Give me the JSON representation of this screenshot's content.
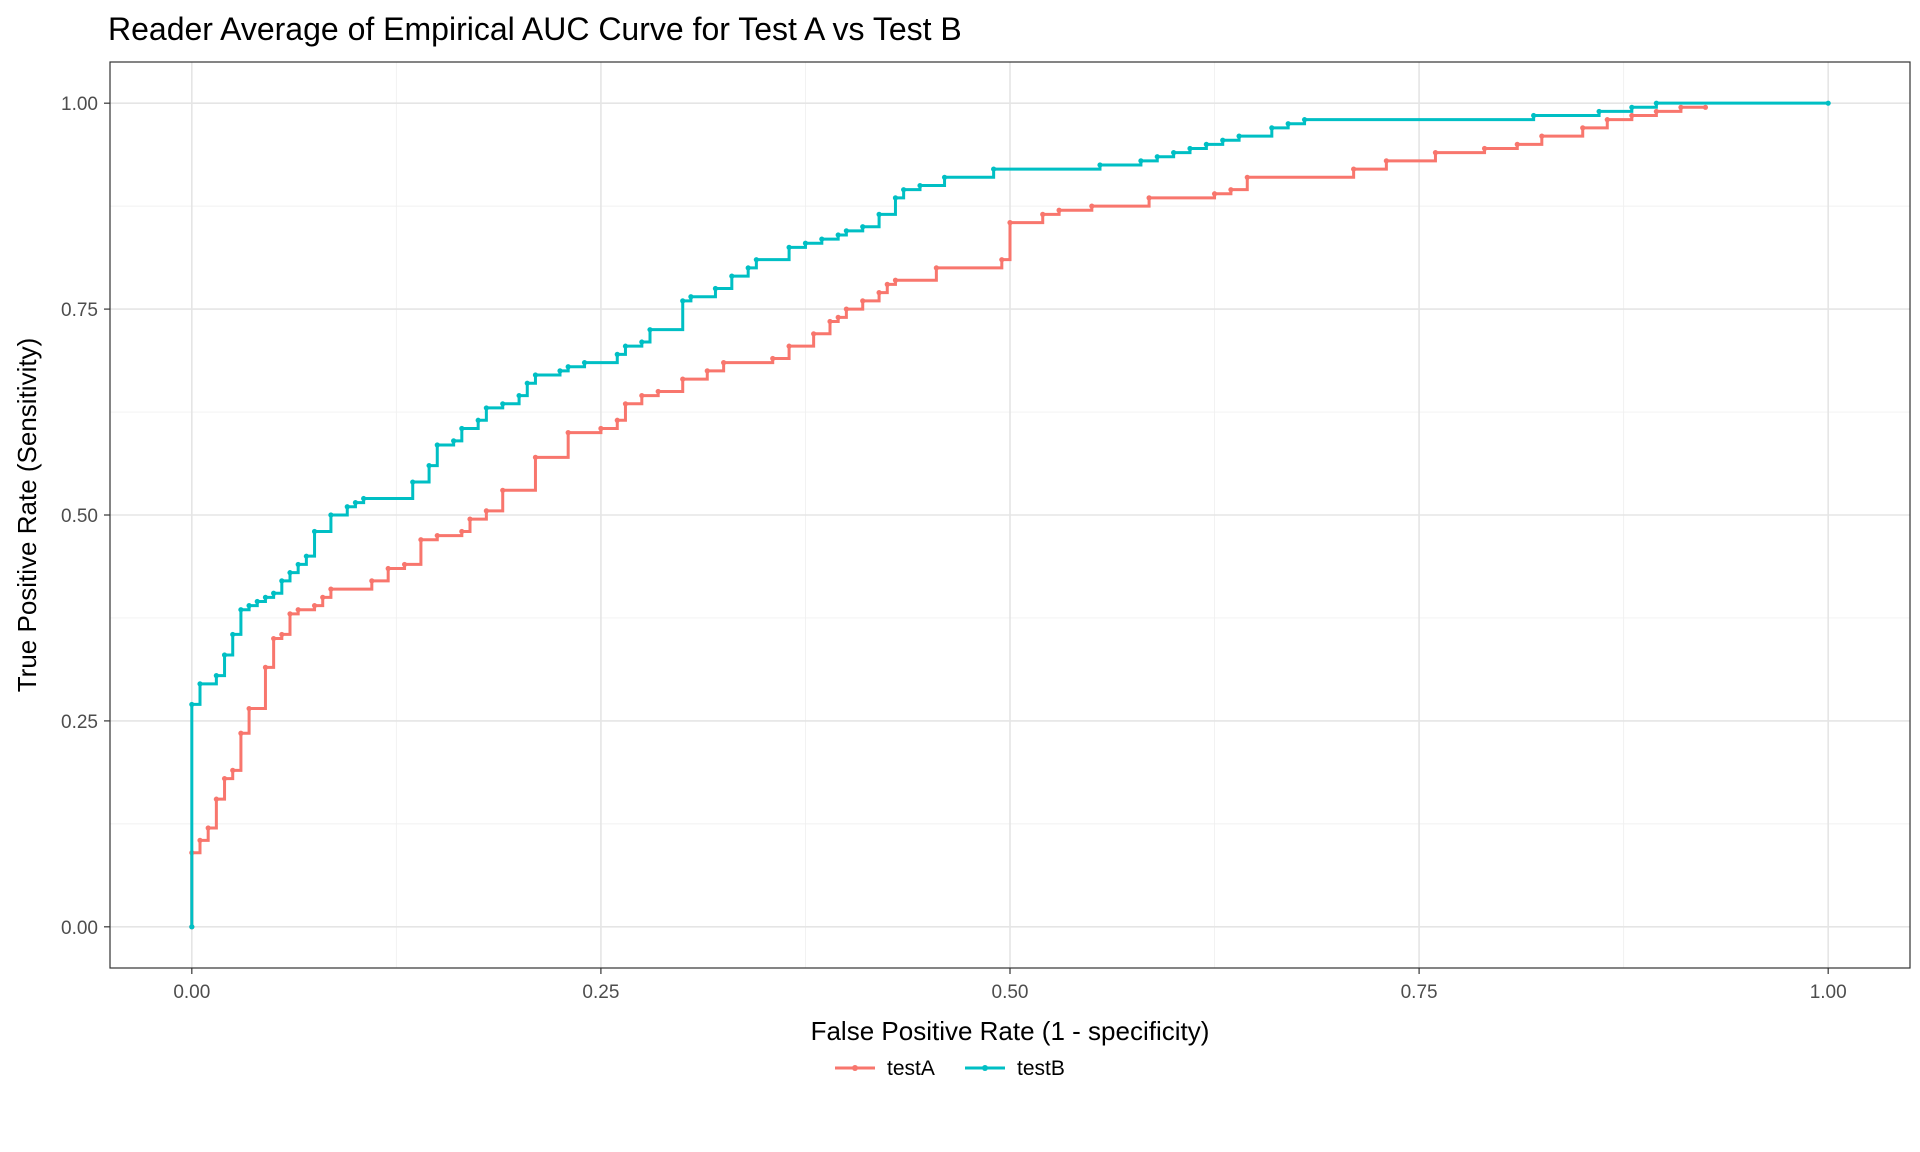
{
  "chart_data": {
    "type": "line",
    "title": "Reader Average of Empirical AUC Curve for Test A vs Test B",
    "xlabel": "False Positive Rate (1 - specificity)",
    "ylabel": "True Positive Rate (Sensitivity)",
    "xlim": [
      -0.05,
      1.05
    ],
    "ylim": [
      -0.05,
      1.05
    ],
    "x_ticks": [
      0,
      0.25,
      0.5,
      0.75,
      1.0
    ],
    "x_tick_labels": [
      "0.00",
      "0.25",
      "0.50",
      "0.75",
      "1.00"
    ],
    "y_ticks": [
      0,
      0.25,
      0.5,
      0.75,
      1.0
    ],
    "y_tick_labels": [
      "0.00",
      "0.25",
      "0.50",
      "0.75",
      "1.00"
    ],
    "grid": true,
    "legend_position": "bottom",
    "step": true,
    "series": [
      {
        "name": "testA",
        "color": "#F8766D",
        "points": [
          [
            0,
            0
          ],
          [
            0,
            0.09
          ],
          [
            0.005,
            0.105
          ],
          [
            0.01,
            0.12
          ],
          [
            0.015,
            0.155
          ],
          [
            0.02,
            0.18
          ],
          [
            0.025,
            0.19
          ],
          [
            0.03,
            0.235
          ],
          [
            0.035,
            0.265
          ],
          [
            0.045,
            0.315
          ],
          [
            0.05,
            0.35
          ],
          [
            0.055,
            0.355
          ],
          [
            0.06,
            0.38
          ],
          [
            0.065,
            0.385
          ],
          [
            0.075,
            0.39
          ],
          [
            0.08,
            0.4
          ],
          [
            0.085,
            0.41
          ],
          [
            0.11,
            0.42
          ],
          [
            0.12,
            0.435
          ],
          [
            0.13,
            0.44
          ],
          [
            0.14,
            0.47
          ],
          [
            0.15,
            0.475
          ],
          [
            0.165,
            0.48
          ],
          [
            0.17,
            0.495
          ],
          [
            0.18,
            0.505
          ],
          [
            0.19,
            0.53
          ],
          [
            0.21,
            0.57
          ],
          [
            0.23,
            0.6
          ],
          [
            0.25,
            0.605
          ],
          [
            0.26,
            0.615
          ],
          [
            0.265,
            0.635
          ],
          [
            0.275,
            0.645
          ],
          [
            0.285,
            0.65
          ],
          [
            0.3,
            0.665
          ],
          [
            0.315,
            0.675
          ],
          [
            0.325,
            0.685
          ],
          [
            0.355,
            0.69
          ],
          [
            0.365,
            0.705
          ],
          [
            0.38,
            0.72
          ],
          [
            0.39,
            0.735
          ],
          [
            0.395,
            0.74
          ],
          [
            0.4,
            0.75
          ],
          [
            0.41,
            0.76
          ],
          [
            0.42,
            0.77
          ],
          [
            0.425,
            0.78
          ],
          [
            0.43,
            0.785
          ],
          [
            0.455,
            0.8
          ],
          [
            0.495,
            0.81
          ],
          [
            0.5,
            0.855
          ],
          [
            0.52,
            0.865
          ],
          [
            0.53,
            0.87
          ],
          [
            0.55,
            0.875
          ],
          [
            0.585,
            0.885
          ],
          [
            0.625,
            0.89
          ],
          [
            0.635,
            0.895
          ],
          [
            0.645,
            0.91
          ],
          [
            0.71,
            0.92
          ],
          [
            0.73,
            0.93
          ],
          [
            0.76,
            0.94
          ],
          [
            0.79,
            0.945
          ],
          [
            0.81,
            0.95
          ],
          [
            0.825,
            0.96
          ],
          [
            0.85,
            0.97
          ],
          [
            0.865,
            0.98
          ],
          [
            0.88,
            0.985
          ],
          [
            0.895,
            0.99
          ],
          [
            0.91,
            0.995
          ],
          [
            0.925,
            0.995
          ]
        ]
      },
      {
        "name": "testB",
        "color": "#00BFC4",
        "points": [
          [
            0,
            0
          ],
          [
            0,
            0.27
          ],
          [
            0.005,
            0.295
          ],
          [
            0.015,
            0.305
          ],
          [
            0.02,
            0.33
          ],
          [
            0.025,
            0.355
          ],
          [
            0.03,
            0.385
          ],
          [
            0.035,
            0.39
          ],
          [
            0.04,
            0.395
          ],
          [
            0.045,
            0.4
          ],
          [
            0.05,
            0.405
          ],
          [
            0.055,
            0.42
          ],
          [
            0.06,
            0.43
          ],
          [
            0.065,
            0.44
          ],
          [
            0.07,
            0.45
          ],
          [
            0.075,
            0.48
          ],
          [
            0.085,
            0.5
          ],
          [
            0.095,
            0.51
          ],
          [
            0.1,
            0.515
          ],
          [
            0.105,
            0.52
          ],
          [
            0.135,
            0.54
          ],
          [
            0.145,
            0.56
          ],
          [
            0.15,
            0.585
          ],
          [
            0.16,
            0.59
          ],
          [
            0.165,
            0.605
          ],
          [
            0.175,
            0.615
          ],
          [
            0.18,
            0.63
          ],
          [
            0.19,
            0.635
          ],
          [
            0.2,
            0.645
          ],
          [
            0.205,
            0.66
          ],
          [
            0.21,
            0.67
          ],
          [
            0.225,
            0.675
          ],
          [
            0.23,
            0.68
          ],
          [
            0.24,
            0.685
          ],
          [
            0.26,
            0.695
          ],
          [
            0.265,
            0.705
          ],
          [
            0.275,
            0.71
          ],
          [
            0.28,
            0.725
          ],
          [
            0.3,
            0.76
          ],
          [
            0.305,
            0.765
          ],
          [
            0.32,
            0.775
          ],
          [
            0.33,
            0.79
          ],
          [
            0.34,
            0.8
          ],
          [
            0.345,
            0.81
          ],
          [
            0.365,
            0.825
          ],
          [
            0.375,
            0.83
          ],
          [
            0.385,
            0.835
          ],
          [
            0.395,
            0.84
          ],
          [
            0.4,
            0.845
          ],
          [
            0.41,
            0.85
          ],
          [
            0.42,
            0.865
          ],
          [
            0.43,
            0.885
          ],
          [
            0.435,
            0.895
          ],
          [
            0.445,
            0.9
          ],
          [
            0.46,
            0.91
          ],
          [
            0.49,
            0.92
          ],
          [
            0.555,
            0.925
          ],
          [
            0.58,
            0.93
          ],
          [
            0.59,
            0.935
          ],
          [
            0.6,
            0.94
          ],
          [
            0.61,
            0.945
          ],
          [
            0.62,
            0.95
          ],
          [
            0.63,
            0.955
          ],
          [
            0.64,
            0.96
          ],
          [
            0.66,
            0.97
          ],
          [
            0.67,
            0.975
          ],
          [
            0.68,
            0.98
          ],
          [
            0.82,
            0.985
          ],
          [
            0.86,
            0.99
          ],
          [
            0.88,
            0.995
          ],
          [
            0.895,
            1.0
          ],
          [
            1.0,
            1.0
          ]
        ]
      }
    ]
  }
}
